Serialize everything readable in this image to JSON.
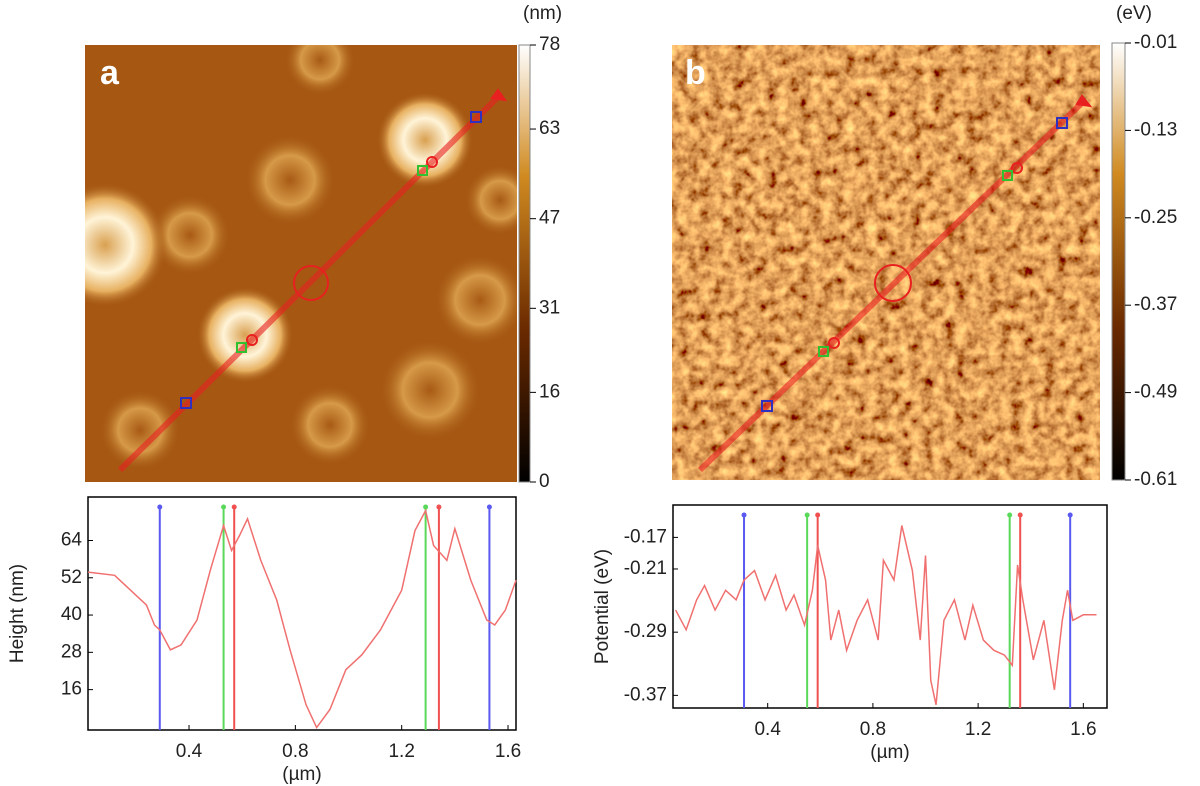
{
  "chart_data": [
    {
      "type": "image",
      "panel": "a",
      "unit": "(nm)",
      "clim": [
        0,
        78
      ],
      "cticks": [
        0,
        16,
        31,
        47,
        63,
        78
      ]
    },
    {
      "type": "image",
      "panel": "b",
      "unit": "(eV)",
      "clim": [
        -0.61,
        -0.01
      ],
      "cticks": [
        -0.61,
        -0.49,
        -0.37,
        -0.25,
        -0.13,
        -0.01
      ]
    },
    {
      "type": "line",
      "ylabel": "Height (nm)",
      "xlabel": "(µm)",
      "xlim": [
        0.02,
        1.63
      ],
      "ylim": [
        3,
        78
      ],
      "xticks": [
        0.4,
        0.8,
        1.2,
        1.6
      ],
      "yticks": [
        16,
        28,
        40,
        52,
        64
      ],
      "x": [
        0.02,
        0.12,
        0.18,
        0.24,
        0.27,
        0.29,
        0.33,
        0.37,
        0.43,
        0.48,
        0.53,
        0.56,
        0.59,
        0.62,
        0.67,
        0.73,
        0.78,
        0.84,
        0.88,
        0.93,
        0.99,
        1.05,
        1.12,
        1.2,
        1.25,
        1.29,
        1.32,
        1.37,
        1.4,
        1.46,
        1.52,
        1.55,
        1.59,
        1.63
      ],
      "series": [
        {
          "color": "#f07070",
          "values": [
            53.8,
            52.8,
            48,
            43.2,
            36.8,
            35.2,
            28.8,
            30.4,
            38.4,
            54.4,
            68.8,
            60.8,
            65.6,
            71,
            57.6,
            44.8,
            28.8,
            11.2,
            3.8,
            9.6,
            22.4,
            27.2,
            35.2,
            48,
            67.2,
            73.6,
            62.4,
            57.6,
            67.8,
            51.2,
            38.4,
            36.8,
            41.6,
            51.2
          ]
        }
      ],
      "cursors": [
        {
          "x": 0.29,
          "color": "#5a5af0"
        },
        {
          "x": 0.53,
          "color": "#5ad85a"
        },
        {
          "x": 0.57,
          "color": "#f05050"
        },
        {
          "x": 1.29,
          "color": "#5ad85a"
        },
        {
          "x": 1.34,
          "color": "#f05050"
        },
        {
          "x": 1.53,
          "color": "#5a5af0"
        }
      ]
    },
    {
      "type": "line",
      "ylabel": "Potential (eV)",
      "xlabel": "(µm)",
      "xlim": [
        0.04,
        1.69
      ],
      "ylim": [
        -0.386,
        -0.129
      ],
      "xticks": [
        0.4,
        0.8,
        1.2,
        1.6
      ],
      "yticks": [
        -0.37,
        -0.29,
        -0.21,
        -0.17
      ],
      "x": [
        0.05,
        0.09,
        0.13,
        0.16,
        0.2,
        0.24,
        0.28,
        0.31,
        0.35,
        0.39,
        0.43,
        0.47,
        0.5,
        0.54,
        0.57,
        0.59,
        0.62,
        0.64,
        0.67,
        0.7,
        0.74,
        0.78,
        0.82,
        0.84,
        0.88,
        0.91,
        0.95,
        0.98,
        1.0,
        1.02,
        1.04,
        1.07,
        1.11,
        1.15,
        1.18,
        1.22,
        1.26,
        1.3,
        1.33,
        1.35,
        1.37,
        1.41,
        1.45,
        1.49,
        1.52,
        1.54,
        1.56,
        1.6,
        1.65
      ],
      "series": [
        {
          "color": "#f07070",
          "values": [
            -0.262,
            -0.287,
            -0.249,
            -0.231,
            -0.262,
            -0.237,
            -0.249,
            -0.224,
            -0.212,
            -0.249,
            -0.218,
            -0.262,
            -0.243,
            -0.281,
            -0.237,
            -0.18,
            -0.224,
            -0.3,
            -0.262,
            -0.313,
            -0.275,
            -0.249,
            -0.3,
            -0.199,
            -0.224,
            -0.155,
            -0.212,
            -0.3,
            -0.193,
            -0.351,
            -0.382,
            -0.275,
            -0.249,
            -0.3,
            -0.256,
            -0.3,
            -0.313,
            -0.319,
            -0.332,
            -0.205,
            -0.249,
            -0.325,
            -0.275,
            -0.363,
            -0.275,
            -0.237,
            -0.275,
            -0.268,
            -0.268
          ]
        }
      ],
      "cursors": [
        {
          "x": 0.31,
          "color": "#5a5af0"
        },
        {
          "x": 0.55,
          "color": "#5ad85a"
        },
        {
          "x": 0.59,
          "color": "#f05050"
        },
        {
          "x": 1.32,
          "color": "#5ad85a"
        },
        {
          "x": 1.36,
          "color": "#f05050"
        },
        {
          "x": 1.55,
          "color": "#5a5af0"
        }
      ]
    }
  ]
}
